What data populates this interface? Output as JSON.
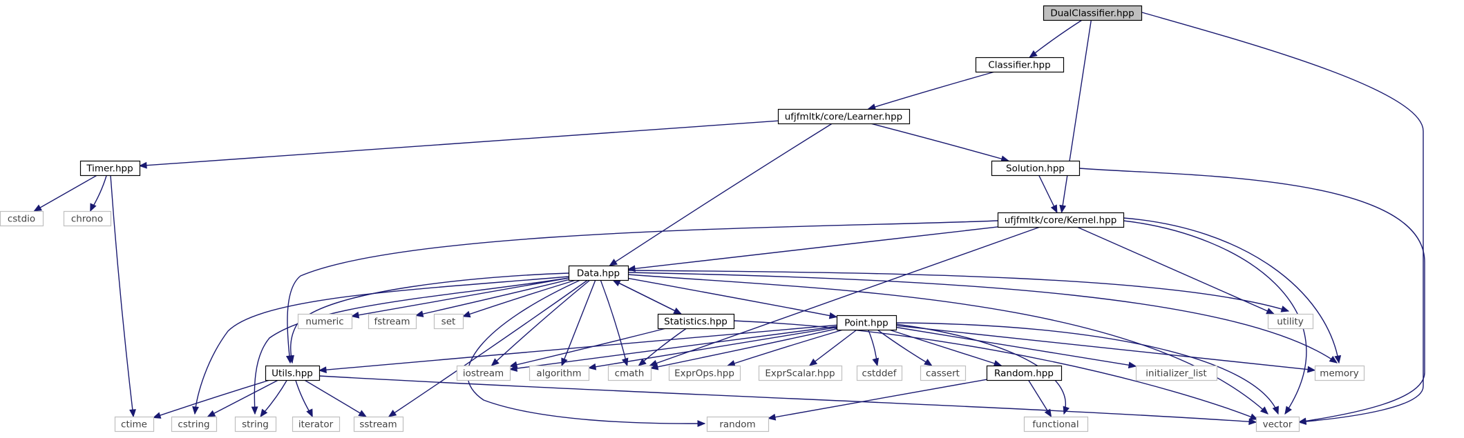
{
  "colors": {
    "edge": "#191970",
    "node_border": "#000000",
    "external_border": "#bfbfbf",
    "external_text": "#404040",
    "focus_fill": "#bfbfbf",
    "text": "#000000"
  },
  "nodes": [
    {
      "id": "dualclassifier",
      "label": "DualClassifier.hpp",
      "kind": "focus"
    },
    {
      "id": "classifier",
      "label": "Classifier.hpp",
      "kind": "header"
    },
    {
      "id": "learner",
      "label": "ufjfmltk/core/Learner.hpp",
      "kind": "header"
    },
    {
      "id": "timer",
      "label": "Timer.hpp",
      "kind": "header"
    },
    {
      "id": "solution",
      "label": "Solution.hpp",
      "kind": "header"
    },
    {
      "id": "kernel",
      "label": "ufjfmltk/core/Kernel.hpp",
      "kind": "header"
    },
    {
      "id": "data",
      "label": "Data.hpp",
      "kind": "header"
    },
    {
      "id": "statistics",
      "label": "Statistics.hpp",
      "kind": "header"
    },
    {
      "id": "point",
      "label": "Point.hpp",
      "kind": "header"
    },
    {
      "id": "utils",
      "label": "Utils.hpp",
      "kind": "header"
    },
    {
      "id": "random_hpp",
      "label": "Random.hpp",
      "kind": "header"
    },
    {
      "id": "cstdio",
      "label": "cstdio",
      "kind": "external"
    },
    {
      "id": "chrono",
      "label": "chrono",
      "kind": "external"
    },
    {
      "id": "numeric",
      "label": "numeric",
      "kind": "external"
    },
    {
      "id": "fstream",
      "label": "fstream",
      "kind": "external"
    },
    {
      "id": "set",
      "label": "set",
      "kind": "external"
    },
    {
      "id": "utility",
      "label": "utility",
      "kind": "external"
    },
    {
      "id": "iostream",
      "label": "iostream",
      "kind": "external"
    },
    {
      "id": "algorithm",
      "label": "algorithm",
      "kind": "external"
    },
    {
      "id": "cmath",
      "label": "cmath",
      "kind": "external"
    },
    {
      "id": "exprops",
      "label": "ExprOps.hpp",
      "kind": "external"
    },
    {
      "id": "exprscalar",
      "label": "ExprScalar.hpp",
      "kind": "external"
    },
    {
      "id": "cstddef",
      "label": "cstddef",
      "kind": "external"
    },
    {
      "id": "cassert",
      "label": "cassert",
      "kind": "external"
    },
    {
      "id": "initializer_list",
      "label": "initializer_list",
      "kind": "external"
    },
    {
      "id": "memory",
      "label": "memory",
      "kind": "external"
    },
    {
      "id": "ctime",
      "label": "ctime",
      "kind": "external"
    },
    {
      "id": "cstring",
      "label": "cstring",
      "kind": "external"
    },
    {
      "id": "string",
      "label": "string",
      "kind": "external"
    },
    {
      "id": "iterator",
      "label": "iterator",
      "kind": "external"
    },
    {
      "id": "sstream",
      "label": "sstream",
      "kind": "external"
    },
    {
      "id": "random",
      "label": "random",
      "kind": "external"
    },
    {
      "id": "functional",
      "label": "functional",
      "kind": "external"
    },
    {
      "id": "vector",
      "label": "vector",
      "kind": "external"
    }
  ],
  "edges": [
    [
      "dualclassifier",
      "classifier"
    ],
    [
      "dualclassifier",
      "kernel"
    ],
    [
      "dualclassifier",
      "vector"
    ],
    [
      "classifier",
      "learner"
    ],
    [
      "learner",
      "timer"
    ],
    [
      "learner",
      "solution"
    ],
    [
      "learner",
      "data"
    ],
    [
      "timer",
      "cstdio"
    ],
    [
      "timer",
      "chrono"
    ],
    [
      "timer",
      "ctime"
    ],
    [
      "solution",
      "kernel"
    ],
    [
      "solution",
      "vector"
    ],
    [
      "kernel",
      "data"
    ],
    [
      "kernel",
      "utility"
    ],
    [
      "kernel",
      "memory"
    ],
    [
      "kernel",
      "vector"
    ],
    [
      "kernel",
      "cmath"
    ],
    [
      "kernel",
      "utils"
    ],
    [
      "data",
      "utils"
    ],
    [
      "data",
      "numeric"
    ],
    [
      "data",
      "fstream"
    ],
    [
      "data",
      "set"
    ],
    [
      "data",
      "statistics"
    ],
    [
      "data",
      "point"
    ],
    [
      "data",
      "utility"
    ],
    [
      "data",
      "memory"
    ],
    [
      "data",
      "vector"
    ],
    [
      "data",
      "iostream"
    ],
    [
      "data",
      "algorithm"
    ],
    [
      "data",
      "cmath"
    ],
    [
      "data",
      "cstring"
    ],
    [
      "data",
      "string"
    ],
    [
      "data",
      "sstream"
    ],
    [
      "data",
      "random"
    ],
    [
      "statistics",
      "data"
    ],
    [
      "statistics",
      "iostream"
    ],
    [
      "statistics",
      "cmath"
    ],
    [
      "statistics",
      "vector"
    ],
    [
      "point",
      "utils"
    ],
    [
      "point",
      "iostream"
    ],
    [
      "point",
      "algorithm"
    ],
    [
      "point",
      "cmath"
    ],
    [
      "point",
      "exprops"
    ],
    [
      "point",
      "exprscalar"
    ],
    [
      "point",
      "cstddef"
    ],
    [
      "point",
      "cassert"
    ],
    [
      "point",
      "random_hpp"
    ],
    [
      "point",
      "functional"
    ],
    [
      "point",
      "initializer_list"
    ],
    [
      "point",
      "memory"
    ],
    [
      "point",
      "vector"
    ],
    [
      "utils",
      "ctime"
    ],
    [
      "utils",
      "cstring"
    ],
    [
      "utils",
      "string"
    ],
    [
      "utils",
      "iterator"
    ],
    [
      "utils",
      "sstream"
    ],
    [
      "utils",
      "vector"
    ],
    [
      "random_hpp",
      "random"
    ],
    [
      "random_hpp",
      "functional"
    ]
  ]
}
